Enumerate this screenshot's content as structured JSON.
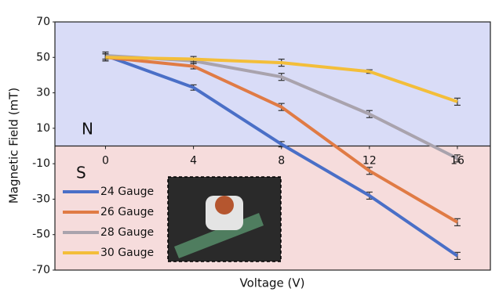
{
  "chart_data": {
    "type": "line",
    "x_label": "Voltage (V)",
    "y_label": "Magnetic Field (mT)",
    "annotations": [
      "N",
      "S"
    ],
    "x": [
      0,
      4,
      8,
      12,
      16
    ],
    "xlim": [
      -2.3,
      17.5
    ],
    "xticks": [
      0,
      4,
      8,
      12,
      16
    ],
    "ylim": [
      -70,
      70
    ],
    "yticks": [
      70,
      50,
      30,
      10,
      -10,
      -30,
      -50,
      -70
    ],
    "legend": "lower left",
    "series": [
      {
        "name": "24 Gauge",
        "color": "#4a6fc7",
        "values": [
          51,
          33,
          1,
          -28,
          -62
        ],
        "errors": [
          2,
          1.5,
          1.5,
          2,
          2
        ]
      },
      {
        "name": "26 Gauge",
        "color": "#e07b45",
        "values": [
          50,
          45,
          22,
          -14,
          -43
        ],
        "errors": [
          2,
          1.5,
          2,
          2,
          2
        ]
      },
      {
        "name": "28 Gauge",
        "color": "#a9a3ad",
        "values": [
          51,
          48,
          39,
          18,
          -7
        ],
        "errors": [
          2,
          1.5,
          2,
          2,
          2
        ]
      },
      {
        "name": "30 Gauge",
        "color": "#f3be3a",
        "values": [
          50,
          49,
          47,
          42,
          25
        ],
        "errors": [
          2,
          1.5,
          2,
          1,
          2
        ]
      }
    ]
  }
}
